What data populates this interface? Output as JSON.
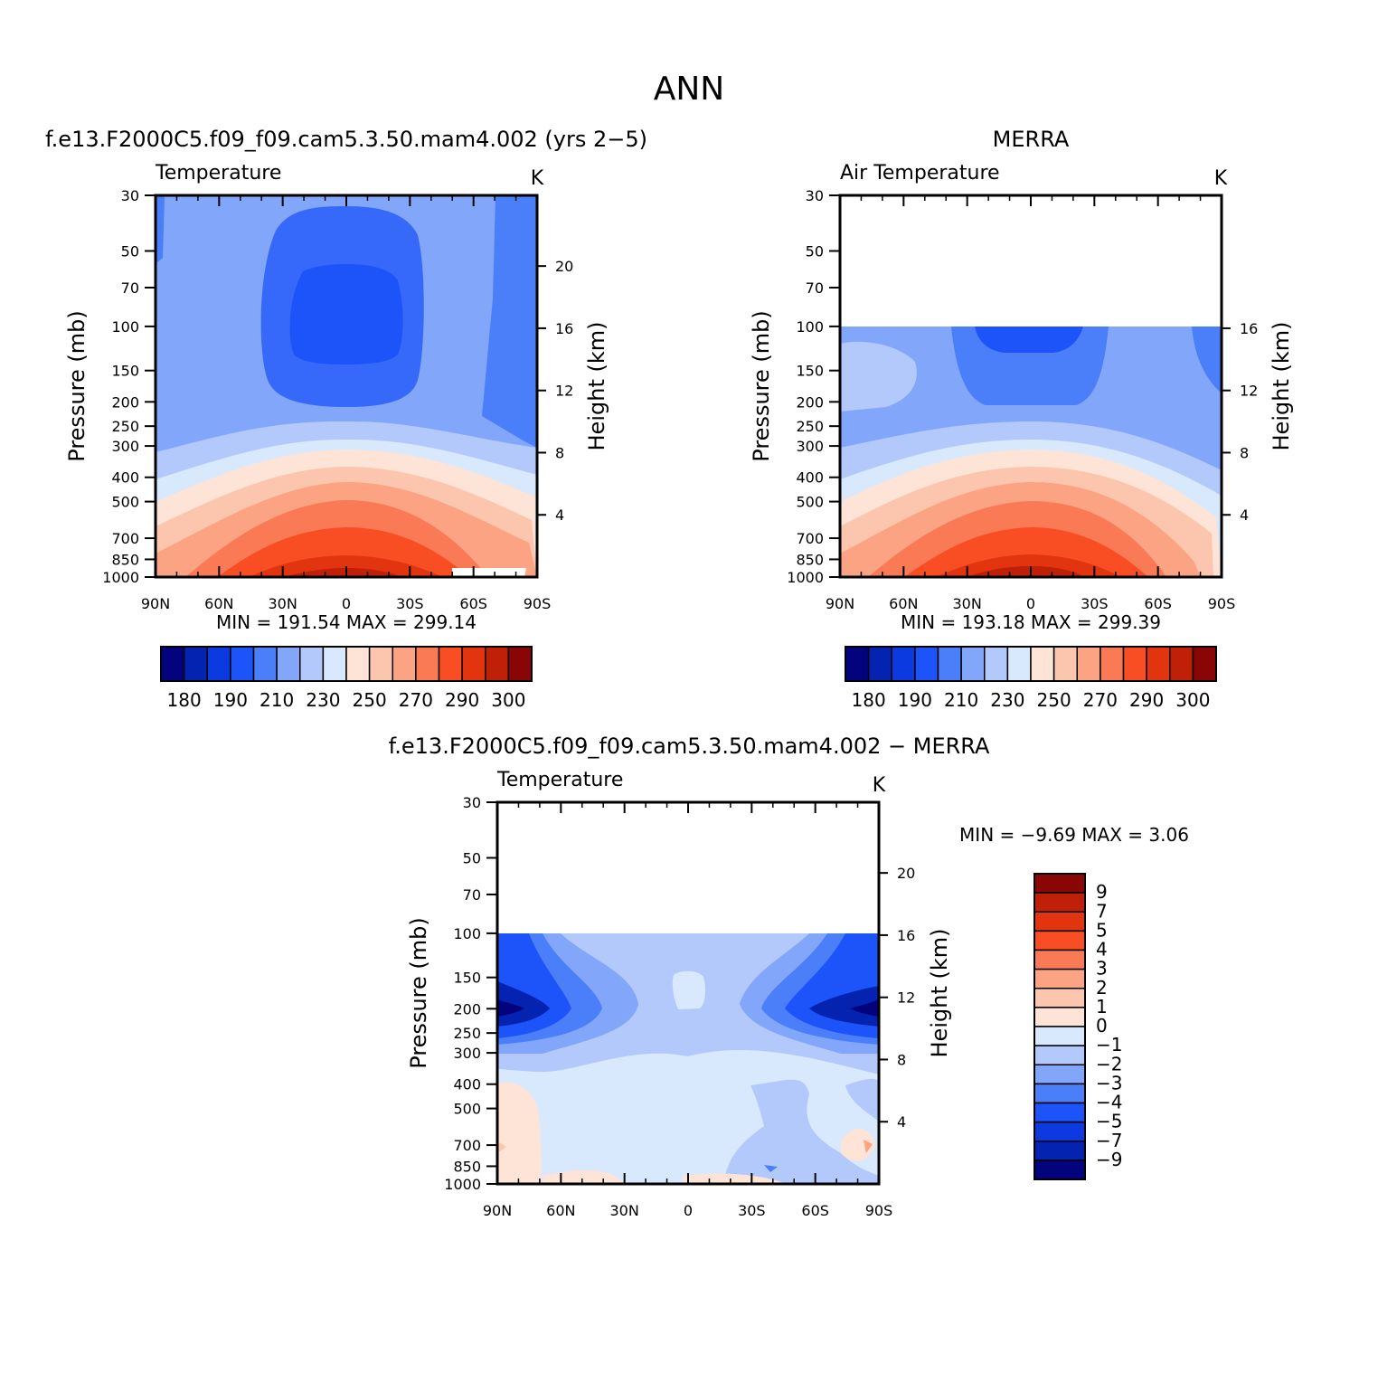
{
  "figure": {
    "title": "ANN"
  },
  "panels": {
    "model": {
      "title": "f.e13.F2000C5.f09_f09.cam5.3.50.mam4.002 (yrs 2−5)",
      "left_label": "Temperature",
      "right_label": "K",
      "ylabel": "Pressure (mb)",
      "ylabel_right": "Height (km)",
      "stats": "MIN = 191.54 MAX = 299.14"
    },
    "obs": {
      "title": "MERRA",
      "left_label": "Air Temperature",
      "right_label": "K",
      "ylabel": "Pressure (mb)",
      "ylabel_right": "Height (km)",
      "stats": "MIN = 193.18 MAX = 299.39"
    },
    "diff": {
      "title": "f.e13.F2000C5.f09_f09.cam5.3.50.mam4.002 − MERRA",
      "left_label": "Temperature",
      "right_label": "K",
      "ylabel": "Pressure (mb)",
      "ylabel_right": "Height (km)",
      "stats": "MIN = −9.69 MAX = 3.06"
    }
  },
  "chart_data": [
    {
      "type": "heatmap",
      "id": "model",
      "title": "f.e13.F2000C5.f09_f09.cam5.3.50.mam4.002 (yrs 2−5)",
      "variable": "Temperature",
      "units": "K",
      "min": 191.54,
      "max": 299.14,
      "x_ticks": [
        "90N",
        "60N",
        "30N",
        "0",
        "30S",
        "60S",
        "90S"
      ],
      "y_ticks": [
        "30",
        "50",
        "70",
        "100",
        "150",
        "200",
        "250",
        "300",
        "400",
        "500",
        "700",
        "850",
        "1000"
      ],
      "y_ticks_right": [
        "20",
        "16",
        "12",
        "8",
        "4"
      ],
      "ylim": [
        1000,
        30
      ],
      "y_scale": "log",
      "colorbar_labels": [
        "180",
        "190",
        "210",
        "230",
        "250",
        "270",
        "290",
        "300"
      ],
      "colorbar_colors": [
        "#03037d",
        "#0323b0",
        "#0a3ae0",
        "#1c54fa",
        "#4b7ef9",
        "#82a6f9",
        "#b3c9fc",
        "#d8e8fd",
        "#fee4d6",
        "#fcc6ae",
        "#fca384",
        "#fb7a56",
        "#f94e24",
        "#e33410",
        "#c01f08",
        "#8a0606"
      ]
    },
    {
      "type": "heatmap",
      "id": "obs",
      "title": "MERRA",
      "variable": "Air Temperature",
      "units": "K",
      "min": 193.18,
      "max": 299.39,
      "x_ticks": [
        "90N",
        "60N",
        "30N",
        "0",
        "30S",
        "60S",
        "90S"
      ],
      "y_ticks": [
        "30",
        "50",
        "70",
        "100",
        "150",
        "200",
        "250",
        "300",
        "400",
        "500",
        "700",
        "850",
        "1000"
      ],
      "y_ticks_right": [
        "16",
        "12",
        "8",
        "4"
      ],
      "ylim": [
        1000,
        30
      ],
      "y_scale": "log",
      "colorbar_labels": [
        "180",
        "190",
        "210",
        "230",
        "250",
        "270",
        "290",
        "300"
      ],
      "colorbar_colors": [
        "#03037d",
        "#0323b0",
        "#0a3ae0",
        "#1c54fa",
        "#4b7ef9",
        "#82a6f9",
        "#b3c9fc",
        "#d8e8fd",
        "#fee4d6",
        "#fcc6ae",
        "#fca384",
        "#fb7a56",
        "#f94e24",
        "#e33410",
        "#c01f08",
        "#8a0606"
      ]
    },
    {
      "type": "heatmap",
      "id": "diff",
      "title": "f.e13.F2000C5.f09_f09.cam5.3.50.mam4.002 − MERRA",
      "variable": "Temperature",
      "units": "K",
      "min": -9.69,
      "max": 3.06,
      "x_ticks": [
        "90N",
        "60N",
        "30N",
        "0",
        "30S",
        "60S",
        "90S"
      ],
      "y_ticks": [
        "30",
        "50",
        "70",
        "100",
        "150",
        "200",
        "250",
        "300",
        "400",
        "500",
        "700",
        "850",
        "1000"
      ],
      "y_ticks_right": [
        "20",
        "16",
        "12",
        "8",
        "4"
      ],
      "ylim": [
        1000,
        30
      ],
      "y_scale": "log",
      "colorbar_labels": [
        "9",
        "7",
        "5",
        "4",
        "3",
        "2",
        "1",
        "0",
        "−1",
        "−2",
        "−3",
        "−4",
        "−5",
        "−7",
        "−9"
      ],
      "colorbar_colors": [
        "#8a0606",
        "#c01f08",
        "#e33410",
        "#f94e24",
        "#fb7a56",
        "#fca384",
        "#fcc6ae",
        "#fee4d6",
        "#d8e8fd",
        "#b3c9fc",
        "#82a6f9",
        "#4b7ef9",
        "#1c54fa",
        "#0a3ae0",
        "#0323b0",
        "#03037d"
      ]
    }
  ]
}
